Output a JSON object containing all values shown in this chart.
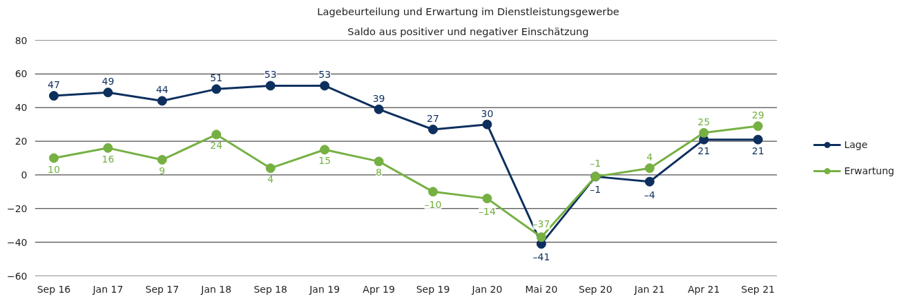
{
  "chart_data": {
    "type": "line",
    "title": "Lagebeurteilung und Erwartung im Dienstleistungsgewerbe",
    "subtitle": "Saldo aus positiver und negativer Einschätzung",
    "categories": [
      "Sep 16",
      "Jan 17",
      "Sep 17",
      "Jan 18",
      "Sep 18",
      "Jan 19",
      "Apr 19",
      "Sep 19",
      "Jan 20",
      "Mai 20",
      "Sep 20",
      "Jan 21",
      "Apr 21",
      "Sep 21"
    ],
    "series": [
      {
        "name": "Lage",
        "color": "#0d2f5e",
        "values": [
          47,
          49,
          44,
          51,
          53,
          53,
          39,
          27,
          30,
          -41,
          -1,
          -4,
          21,
          21
        ],
        "value_labels": [
          "47",
          "49",
          "44",
          "51",
          "53",
          "53",
          "39",
          "27",
          "30",
          "–41",
          "–1",
          "–4",
          "21",
          "21"
        ]
      },
      {
        "name": "Erwartung",
        "color": "#76b043",
        "values": [
          10,
          16,
          9,
          24,
          4,
          15,
          8,
          -10,
          -14,
          -37,
          -1,
          4,
          25,
          29
        ],
        "value_labels": [
          "10",
          "16",
          "9",
          "24",
          "4",
          "15",
          "8",
          "–10",
          "–14",
          "–37",
          "–1",
          "4",
          "25",
          "29"
        ]
      }
    ],
    "ylim": [
      -60,
      80
    ],
    "yticks": [
      -60,
      -40,
      -20,
      0,
      20,
      40,
      60,
      80
    ],
    "grid": "y",
    "legend": "right",
    "marker": "circle",
    "line_style": "solid"
  }
}
